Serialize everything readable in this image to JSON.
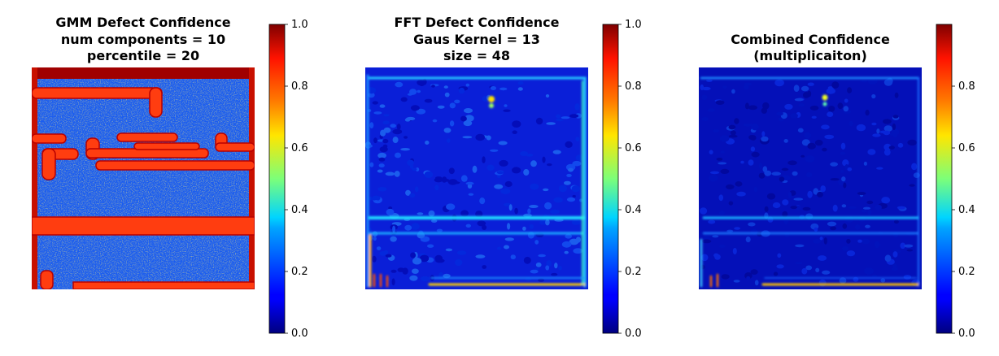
{
  "chart_data": [
    {
      "type": "heatmap",
      "title_lines": [
        "GMM Defect Confidence",
        "num components = 10",
        "percentile = 20"
      ],
      "colormap": "jet",
      "clim": [
        0,
        1
      ],
      "colorbar_ticks": [
        0.0,
        0.2,
        0.4,
        0.6,
        0.8,
        1.0
      ],
      "colorbar_tick_labels": [
        "0.0",
        "0.2",
        "0.4",
        "0.6",
        "0.8",
        "1.0"
      ],
      "axes_visible": false
    },
    {
      "type": "heatmap",
      "title_lines": [
        "FFT Defect Confidence",
        "Gaus Kernel = 13",
        "size = 48"
      ],
      "colormap": "jet",
      "clim": [
        0,
        1
      ],
      "colorbar_ticks": [
        0.0,
        0.2,
        0.4,
        0.6,
        0.8,
        1.0
      ],
      "colorbar_tick_labels": [
        "0.0",
        "0.2",
        "0.4",
        "0.6",
        "0.8",
        "1.0"
      ],
      "axes_visible": false
    },
    {
      "type": "heatmap",
      "title_lines": [
        "Combined Confidence",
        "(multiplicaiton)"
      ],
      "colormap": "jet",
      "clim": [
        0,
        1
      ],
      "colorbar_ticks": [
        0.0,
        0.2,
        0.4,
        0.6,
        0.8
      ],
      "colorbar_tick_labels": [
        "0.0",
        "0.2",
        "0.4",
        "0.6",
        "0.8"
      ],
      "axes_visible": false
    }
  ]
}
